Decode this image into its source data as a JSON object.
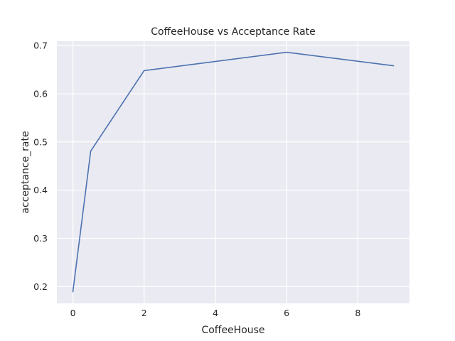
{
  "chart_data": {
    "type": "line",
    "title": "CoffeeHouse vs Acceptance Rate",
    "xlabel": "CoffeeHouse",
    "ylabel": "acceptance_rate",
    "x": [
      0,
      0.5,
      2,
      6,
      9
    ],
    "series": [
      {
        "values": [
          0.189,
          0.481,
          0.648,
          0.686,
          0.658
        ]
      }
    ],
    "xlim": [
      -0.45,
      9.45
    ],
    "ylim": [
      0.165,
      0.709
    ],
    "xticks": [
      0,
      2,
      4,
      6,
      8
    ],
    "xtick_labels": [
      "0",
      "2",
      "4",
      "6",
      "8"
    ],
    "yticks": [
      0.2,
      0.3,
      0.4,
      0.5,
      0.6,
      0.7
    ],
    "ytick_labels": [
      "0.2",
      "0.3",
      "0.4",
      "0.5",
      "0.6",
      "0.7"
    ],
    "grid": true,
    "colors": {
      "background": "#eaeaf2",
      "grid": "#ffffff",
      "line": "#4c72b0"
    }
  }
}
